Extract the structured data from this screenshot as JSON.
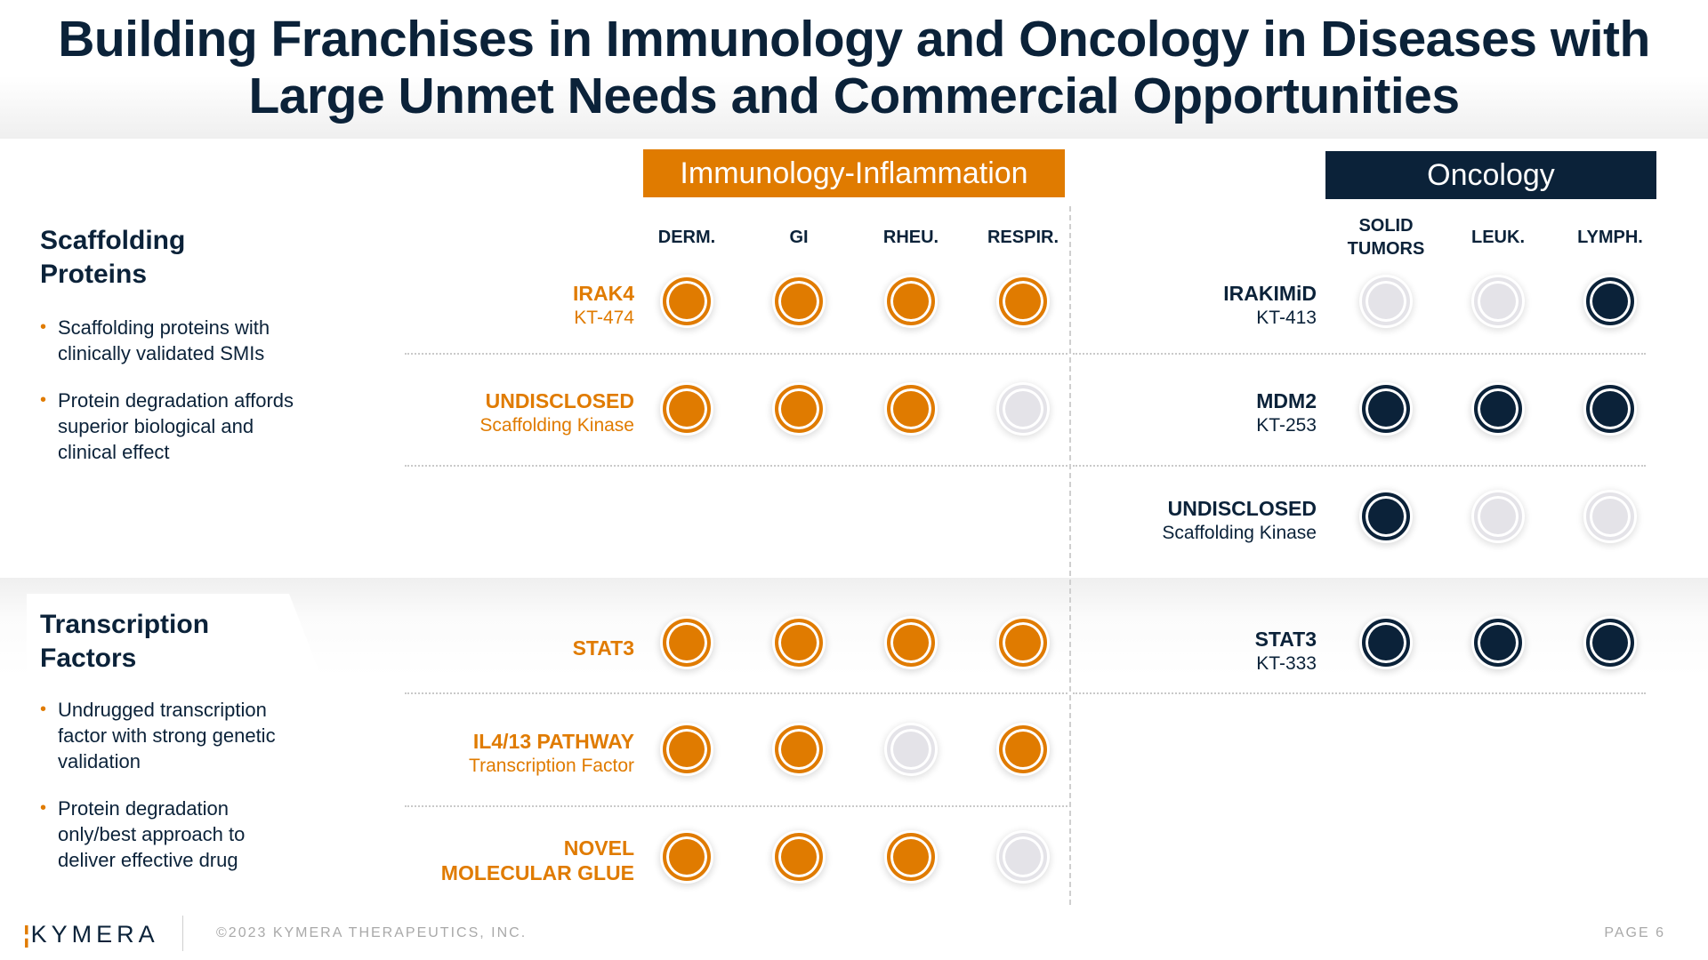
{
  "title": {
    "line1": "Building Franchises in Immunology and Oncology in Diseases with",
    "line2": "Large Unmet Needs and Commercial Opportunities"
  },
  "cards": [
    {
      "title_line1": "Scaffolding",
      "title_line2": "Proteins",
      "bullets": [
        "Scaffolding proteins with clinically validated SMIs",
        "Protein degradation affords superior biological and clinical effect"
      ]
    },
    {
      "title_line1": "Transcription",
      "title_line2": "Factors",
      "bullets": [
        "Undrugged transcription factor with strong genetic validation",
        "Protein degradation only/best approach to deliver effective drug"
      ]
    }
  ],
  "categories": {
    "immunology": {
      "label": "Immunology-Inflammation",
      "color": "#E07B00"
    },
    "oncology": {
      "label": "Oncology",
      "color": "#0B2239"
    }
  },
  "columns": {
    "immunology": [
      "DERM.",
      "GI",
      "RHEU.",
      "RESPIR."
    ],
    "oncology": [
      "SOLID TUMORS",
      "LEUK.",
      "LYMPH."
    ],
    "oncology_solid_line1": "SOLID",
    "oncology_solid_line2": "TUMORS"
  },
  "immunology_rows": [
    {
      "main": "IRAK4",
      "sub": "KT-474",
      "status": [
        true,
        true,
        true,
        true
      ]
    },
    {
      "main": "UNDISCLOSED",
      "sub": "Scaffolding Kinase",
      "status": [
        true,
        true,
        true,
        false
      ]
    },
    {
      "main": "STAT3",
      "sub": "",
      "status": [
        true,
        true,
        true,
        true
      ]
    },
    {
      "main": "IL4/13 PATHWAY",
      "sub": "Transcription Factor",
      "status": [
        true,
        true,
        false,
        true
      ]
    },
    {
      "main": "NOVEL",
      "sub": "MOLECULAR GLUE",
      "status": [
        true,
        true,
        true,
        false
      ]
    }
  ],
  "oncology_rows": [
    {
      "main": "IRAKIMiD",
      "sub": "KT-413",
      "status": [
        false,
        false,
        true
      ]
    },
    {
      "main": "MDM2",
      "sub": "KT-253",
      "status": [
        true,
        true,
        true
      ]
    },
    {
      "main": "UNDISCLOSED",
      "sub": "Scaffolding Kinase",
      "status": [
        true,
        false,
        false
      ]
    },
    {
      "main": "STAT3",
      "sub": "KT-333",
      "status": [
        true,
        true,
        true
      ]
    }
  ],
  "footer": {
    "logo_mark": "¦",
    "logo_text": "KYMERA",
    "copyright": "©2023 KYMERA THERAPEUTICS, INC.",
    "page": "PAGE 6"
  },
  "colors": {
    "orange": "#E07B00",
    "navy": "#0B2239",
    "empty": "#E4E3E8"
  }
}
